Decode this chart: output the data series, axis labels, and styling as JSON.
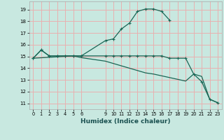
{
  "xlabel": "Humidex (Indice chaleur)",
  "background_color": "#c8e8e0",
  "grid_color": "#e8b0b0",
  "line_color": "#1a6655",
  "xlim": [
    -0.5,
    23.5
  ],
  "ylim": [
    10.5,
    19.7
  ],
  "yticks": [
    11,
    12,
    13,
    14,
    15,
    16,
    17,
    18,
    19
  ],
  "xticks": [
    0,
    1,
    2,
    3,
    4,
    5,
    6,
    9,
    10,
    11,
    12,
    13,
    14,
    15,
    16,
    17,
    18,
    19,
    20,
    21,
    22,
    23
  ],
  "line1_x": [
    0,
    1,
    2,
    3,
    4,
    5,
    6,
    9,
    10,
    11,
    12,
    13,
    14,
    15,
    16,
    17
  ],
  "line1_y": [
    14.85,
    15.55,
    15.05,
    15.05,
    15.05,
    15.05,
    15.05,
    16.35,
    16.5,
    17.35,
    17.85,
    18.85,
    19.05,
    19.05,
    18.85,
    18.1
  ],
  "line2_x": [
    0,
    1,
    2,
    3,
    4,
    5,
    6,
    9,
    10,
    11,
    12,
    13,
    14,
    15,
    16,
    17,
    18,
    19,
    20,
    21,
    22,
    23
  ],
  "line2_y": [
    14.85,
    15.55,
    15.05,
    15.05,
    15.05,
    15.05,
    15.05,
    15.05,
    15.05,
    15.05,
    15.05,
    15.05,
    15.05,
    15.05,
    15.05,
    14.85,
    14.85,
    14.85,
    13.5,
    12.85,
    11.35,
    11.05
  ],
  "line3_x": [
    0,
    5,
    6,
    9,
    10,
    11,
    12,
    13,
    14,
    15,
    16,
    17,
    18,
    19,
    20,
    21,
    22,
    23
  ],
  "line3_y": [
    14.85,
    15.05,
    14.9,
    14.6,
    14.4,
    14.2,
    14.0,
    13.8,
    13.6,
    13.5,
    13.35,
    13.2,
    13.05,
    12.9,
    13.5,
    13.3,
    11.35,
    11.05
  ]
}
